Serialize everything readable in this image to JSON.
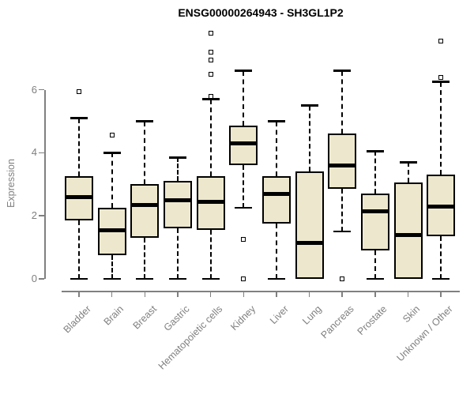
{
  "title": "ENSG00000264943 - SH3GL1P2",
  "chart_data": {
    "type": "boxplot",
    "title": "ENSG00000264943 - SH3GL1P2",
    "xlabel": "",
    "ylabel": "Expression",
    "yticks": [
      0,
      2,
      4,
      6
    ],
    "ylim": [
      0,
      6
    ],
    "grid": false,
    "categories": [
      "Bladder",
      "Brain",
      "Breast",
      "Gastric",
      "Hematopoietic cells",
      "Kidney",
      "Liver",
      "Lung",
      "Pancreas",
      "Prostate",
      "Skin",
      "Unknown / Other"
    ],
    "series": [
      {
        "label": "Bladder",
        "low": 0,
        "q1": 1.85,
        "median": 2.6,
        "q3": 3.25,
        "high": 5.1,
        "outliers": [
          5.95
        ]
      },
      {
        "label": "Brain",
        "low": 0,
        "q1": 0.75,
        "median": 1.55,
        "q3": 2.25,
        "high": 4.0,
        "outliers": [
          4.55
        ]
      },
      {
        "label": "Breast",
        "low": 0,
        "q1": 1.3,
        "median": 2.35,
        "q3": 3.0,
        "high": 5.0,
        "outliers": []
      },
      {
        "label": "Gastric",
        "low": 0,
        "q1": 1.6,
        "median": 2.5,
        "q3": 3.1,
        "high": 3.85,
        "outliers": []
      },
      {
        "label": "Hematopoietic cells",
        "low": 0,
        "q1": 1.55,
        "median": 2.45,
        "q3": 3.25,
        "high": 5.7,
        "outliers": [
          5.8,
          6.5,
          6.95,
          7.2,
          7.8
        ]
      },
      {
        "label": "Kidney",
        "low": 2.25,
        "q1": 3.6,
        "median": 4.3,
        "q3": 4.85,
        "high": 6.6,
        "outliers": [
          1.25,
          0
        ]
      },
      {
        "label": "Liver",
        "low": 0,
        "q1": 1.75,
        "median": 2.7,
        "q3": 3.25,
        "high": 5.0,
        "outliers": []
      },
      {
        "label": "Lung",
        "low": 0,
        "q1": 0,
        "median": 1.15,
        "q3": 3.4,
        "high": 5.5,
        "outliers": []
      },
      {
        "label": "Pancreas",
        "low": 1.5,
        "q1": 2.85,
        "median": 3.6,
        "q3": 4.6,
        "high": 6.6,
        "outliers": [
          0
        ]
      },
      {
        "label": "Prostate",
        "low": 0,
        "q1": 0.9,
        "median": 2.15,
        "q3": 2.7,
        "high": 4.05,
        "outliers": []
      },
      {
        "label": "Skin",
        "low": 0,
        "q1": 0,
        "median": 1.4,
        "q3": 3.05,
        "high": 3.7,
        "outliers": []
      },
      {
        "label": "Unknown / Other",
        "low": 0,
        "q1": 1.35,
        "median": 2.3,
        "q3": 3.3,
        "high": 6.25,
        "outliers": [
          6.4,
          7.55
        ]
      }
    ],
    "colors": {
      "box_fill": "#EDE8CD",
      "box_border": "#000000",
      "median": "#000000",
      "outlier_border": "#000000",
      "axis": "#808080",
      "tick_label": "#808080",
      "title": "#000000"
    }
  }
}
